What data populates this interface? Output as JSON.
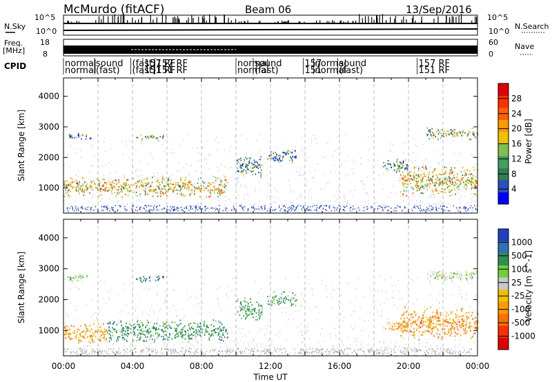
{
  "header": {
    "station": "McMurdo (fitACF)",
    "beam": "Beam 06",
    "date": "13/Sep/2016"
  },
  "strip_labels": {
    "nsky": "N.Sky",
    "nsky_top": "10^5",
    "nsky_bottom": "10^0",
    "nsearch": "N.Search",
    "nsearch_top": "10^5",
    "nsearch_bottom": "10^0",
    "freq_1": "Freq.",
    "freq_2": "[MHz]",
    "freq_top": "18",
    "freq_bottom": "8",
    "nave": "Nave",
    "nave_top": "60",
    "nave_bottom": "0",
    "cpid": "CPID",
    "cpid_segments": [
      {
        "t": 0.0,
        "row1": "normal",
        "row2": "normal"
      },
      {
        "t": 1.8,
        "row1": "sound",
        "row2": "(fast)"
      },
      {
        "t": 3.9,
        "row1": "(fast)",
        "row2": "(fast)"
      },
      {
        "t": 4.6,
        "row1": "157 RF",
        "row2": "151 RF"
      },
      {
        "t": 5.3,
        "row1": "157 RF",
        "row2": "151 RF"
      },
      {
        "t": 10.0,
        "row1": "normal",
        "row2": "normal"
      },
      {
        "t": 11.0,
        "row1": "sound",
        "row2": "(fast)"
      },
      {
        "t": 13.9,
        "row1": "157",
        "row2": "151"
      },
      {
        "t": 14.5,
        "row1": "normal",
        "row2": "normal"
      },
      {
        "t": 15.9,
        "row1": "sound",
        "row2": "(fast)"
      },
      {
        "t": 20.5,
        "row1": "157 RF",
        "row2": "151 RF"
      }
    ]
  },
  "axes": {
    "x_ticks": [
      "00:00",
      "04:00",
      "08:00",
      "12:00",
      "16:00",
      "20:00",
      "00:00"
    ],
    "x_label": "Time UT",
    "y_ticks": [
      "1000",
      "2000",
      "3000",
      "4000"
    ],
    "y_label": "Slant Range [km]"
  },
  "colors": {
    "power_scale": [
      "#0000ff",
      "#2a4fbf",
      "#2f7f55",
      "#3f9f5f",
      "#7fc04f",
      "#f0c000",
      "#ff9a00",
      "#ff6000",
      "#ff3000",
      "#e00000"
    ],
    "velocity_scale": [
      "#2040c0",
      "#3070b0",
      "#2f8f4f",
      "#6fcf3f",
      "#c8c8c8",
      "#f0c000",
      "#ff9a00",
      "#ff7000",
      "#ff3000",
      "#e00000"
    ]
  },
  "chart_data": [
    {
      "type": "heatmap",
      "title": "Power",
      "xlabel": "Time UT",
      "ylabel": "Slant Range [km]",
      "xlim": [
        0,
        24
      ],
      "ylim": [
        180,
        4600
      ],
      "colorbar": {
        "label": "Power [dB]",
        "ticks": [
          "4",
          "8",
          "12",
          "16",
          "20",
          "24",
          "28"
        ],
        "range": [
          0,
          30
        ]
      },
      "regions": [
        {
          "x": [
            0.0,
            9.5
          ],
          "y": [
            700,
            1400
          ],
          "value": 16
        },
        {
          "x": [
            0.2,
            1.6
          ],
          "y": [
            2600,
            2850
          ],
          "value": 8
        },
        {
          "x": [
            4.2,
            5.8
          ],
          "y": [
            2550,
            2800
          ],
          "value": 12
        },
        {
          "x": [
            10.0,
            11.5
          ],
          "y": [
            1300,
            2100
          ],
          "value": 8
        },
        {
          "x": [
            11.8,
            13.5
          ],
          "y": [
            1800,
            2300
          ],
          "value": 6
        },
        {
          "x": [
            18.5,
            20.0
          ],
          "y": [
            1500,
            2000
          ],
          "value": 8
        },
        {
          "x": [
            19.5,
            24.0
          ],
          "y": [
            700,
            1800
          ],
          "value": 16
        },
        {
          "x": [
            21.0,
            24.0
          ],
          "y": [
            2600,
            3000
          ],
          "value": 10
        }
      ]
    },
    {
      "type": "heatmap",
      "title": "Velocity",
      "xlabel": "Time UT",
      "ylabel": "Slant Range [km]",
      "xlim": [
        0,
        24
      ],
      "ylim": [
        180,
        4600
      ],
      "colorbar": {
        "label": "Velocity [m s^-1]",
        "ticks": [
          "1000",
          "500",
          "100",
          "25",
          "-25",
          "-100",
          "-500",
          "-1000"
        ]
      },
      "regions": [
        {
          "x": [
            0.0,
            2.5
          ],
          "y": [
            600,
            1300
          ],
          "value": -200
        },
        {
          "x": [
            2.5,
            9.5
          ],
          "y": [
            600,
            1400
          ],
          "value": 300
        },
        {
          "x": [
            0.2,
            1.6
          ],
          "y": [
            2600,
            2850
          ],
          "value": 25
        },
        {
          "x": [
            4.2,
            5.8
          ],
          "y": [
            2550,
            2800
          ],
          "value": 600
        },
        {
          "x": [
            10.0,
            11.5
          ],
          "y": [
            1300,
            2100
          ],
          "value": 150
        },
        {
          "x": [
            11.8,
            13.5
          ],
          "y": [
            1800,
            2300
          ],
          "value": 150
        },
        {
          "x": [
            18.5,
            20.0
          ],
          "y": [
            1000,
            1300
          ],
          "value": -300
        },
        {
          "x": [
            19.5,
            24.0
          ],
          "y": [
            700,
            1800
          ],
          "value": -400
        },
        {
          "x": [
            21.0,
            24.0
          ],
          "y": [
            2600,
            3000
          ],
          "value": 25
        }
      ]
    }
  ]
}
